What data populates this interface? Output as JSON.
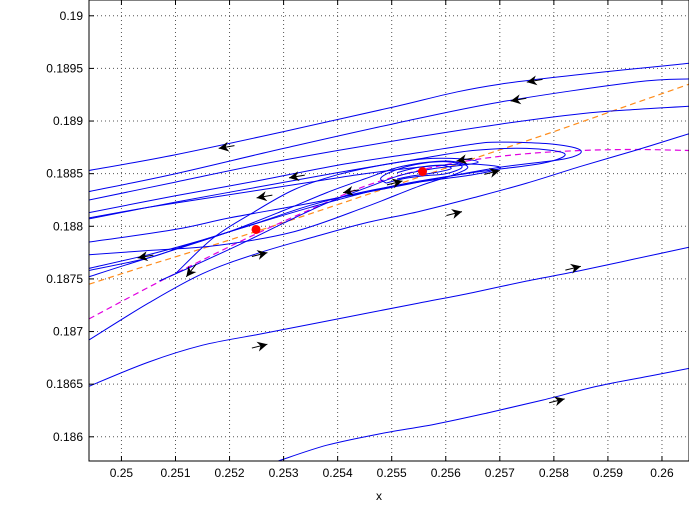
{
  "chart_data": {
    "type": "line",
    "title": "",
    "xlabel": "x",
    "ylabel": "",
    "xlim": [
      0.2494,
      0.2605
    ],
    "ylim": [
      0.18577,
      0.19015
    ],
    "grid": true,
    "xticks": [
      0.25,
      0.251,
      0.252,
      0.253,
      0.254,
      0.255,
      0.256,
      0.257,
      0.258,
      0.259,
      0.26
    ],
    "xtick_labels": [
      "0.25",
      "0.251",
      "0.252",
      "0.253",
      "0.254",
      "0.255",
      "0.256",
      "0.257",
      "0.258",
      "0.259",
      "0.26"
    ],
    "yticks": [
      0.186,
      0.1865,
      0.187,
      0.1875,
      0.188,
      0.1885,
      0.189,
      0.1895,
      0.19
    ],
    "ytick_labels": [
      "0.186",
      "0.1865",
      "0.187",
      "0.1875",
      "0.188",
      "0.1885",
      "0.189",
      "0.1895",
      "0.19"
    ],
    "colors": {
      "trajectory": "#0000ee",
      "arrow": "#000000",
      "nullcline_orange": "#ff8c1a",
      "nullcline_magenta": "#e000e0",
      "equilibrium": "#ff0000",
      "grid": "#555555"
    },
    "trajectories": [
      {
        "x": [
          0.2494,
          0.251,
          0.253,
          0.255,
          0.257,
          0.2605
        ],
        "y": [
          0.18853,
          0.18868,
          0.1889,
          0.18913,
          0.18935,
          0.18955
        ]
      },
      {
        "x": [
          0.2494,
          0.251,
          0.253,
          0.255,
          0.257,
          0.2595,
          0.2605
        ],
        "y": [
          0.18833,
          0.1885,
          0.18874,
          0.18897,
          0.18918,
          0.18937,
          0.1894
        ]
      },
      {
        "x": [
          0.2494,
          0.251,
          0.2525,
          0.254,
          0.2555,
          0.257,
          0.2585,
          0.2595,
          0.2605
        ],
        "y": [
          0.18825,
          0.18842,
          0.18858,
          0.18872,
          0.18885,
          0.18897,
          0.18907,
          0.18911,
          0.18914
        ]
      },
      {
        "x": [
          0.2494,
          0.251,
          0.2525,
          0.254,
          0.2555,
          0.2565,
          0.257,
          0.258,
          0.2585,
          0.2582,
          0.257,
          0.2555,
          0.2535,
          0.252,
          0.251,
          0.2494
        ],
        "y": [
          0.18813,
          0.18829,
          0.18843,
          0.18858,
          0.1887,
          0.18878,
          0.1888,
          0.18878,
          0.18872,
          0.18864,
          0.18856,
          0.18842,
          0.18822,
          0.18808,
          0.18797,
          0.18785
        ]
      },
      {
        "x": [
          0.2494,
          0.251,
          0.2525,
          0.254,
          0.2555,
          0.2565,
          0.2575,
          0.2582,
          0.2578,
          0.2565,
          0.255,
          0.2535,
          0.2522,
          0.2512,
          0.2505,
          0.2494
        ],
        "y": [
          0.18807,
          0.18823,
          0.18837,
          0.18851,
          0.18864,
          0.18872,
          0.18874,
          0.18869,
          0.1886,
          0.18851,
          0.18838,
          0.18818,
          0.18798,
          0.18782,
          0.1877,
          0.18758
        ]
      },
      {
        "x": [
          0.2494,
          0.2505,
          0.2515,
          0.2525,
          0.2535,
          0.2545,
          0.2555,
          0.2562,
          0.2568,
          0.257,
          0.2565,
          0.2555,
          0.2545,
          0.2535,
          0.2525,
          0.2515,
          0.2505,
          0.2494
        ],
        "y": [
          0.18808,
          0.18818,
          0.18826,
          0.18834,
          0.18842,
          0.1885,
          0.18856,
          0.18859,
          0.18858,
          0.18855,
          0.18849,
          0.18842,
          0.18833,
          0.1882,
          0.18803,
          0.18787,
          0.18773,
          0.1876
        ]
      },
      {
        "x": [
          0.2494,
          0.2505,
          0.2518,
          0.2532,
          0.2545,
          0.2555,
          0.2562,
          0.2564,
          0.256,
          0.2552,
          0.2545,
          0.2538,
          0.253,
          0.252,
          0.251,
          0.25,
          0.2494
        ],
        "y": [
          0.18773,
          0.18777,
          0.18782,
          0.18795,
          0.18818,
          0.18838,
          0.1885,
          0.18857,
          0.18862,
          0.18857,
          0.18845,
          0.18832,
          0.18815,
          0.18795,
          0.18778,
          0.18762,
          0.18752
        ]
      },
      {
        "x": [
          0.2507,
          0.2514,
          0.2522,
          0.253,
          0.2538,
          0.2546,
          0.2552,
          0.2558,
          0.2563,
          0.2566,
          0.2563,
          0.2556,
          0.2548,
          0.254,
          0.2532,
          0.2524,
          0.2517,
          0.251
        ],
        "y": [
          0.18748,
          0.18764,
          0.18783,
          0.18803,
          0.18822,
          0.18838,
          0.18849,
          0.18855,
          0.18858,
          0.18861,
          0.18864,
          0.18864,
          0.18858,
          0.18849,
          0.18835,
          0.18812,
          0.18789,
          0.18755
        ]
      },
      {
        "x": [
          0.2549,
          0.2552,
          0.2556,
          0.256,
          0.2563,
          0.2561,
          0.2556,
          0.2551,
          0.2548,
          0.2549
        ],
        "y": [
          0.18841,
          0.18845,
          0.18848,
          0.1885,
          0.18856,
          0.18861,
          0.1886,
          0.18854,
          0.18846,
          0.18841
        ]
      },
      {
        "x": [
          0.2551,
          0.2554,
          0.2558,
          0.2561,
          0.2559,
          0.2555,
          0.2551
        ],
        "y": [
          0.18845,
          0.18848,
          0.18851,
          0.18855,
          0.18858,
          0.18856,
          0.18851
        ]
      },
      {
        "x": [
          0.2494,
          0.2505,
          0.2515,
          0.2525,
          0.2535,
          0.2545,
          0.2555,
          0.2565,
          0.2575,
          0.2585,
          0.2595,
          0.2605
        ],
        "y": [
          0.18692,
          0.18727,
          0.18755,
          0.18774,
          0.18789,
          0.18803,
          0.18814,
          0.18827,
          0.18841,
          0.18857,
          0.18872,
          0.18888
        ]
      },
      {
        "x": [
          0.2494,
          0.2505,
          0.2515,
          0.2525,
          0.2535,
          0.2545,
          0.2555,
          0.2565,
          0.2575,
          0.2585,
          0.2595,
          0.2605
        ],
        "y": [
          0.18648,
          0.18671,
          0.18687,
          0.18697,
          0.18707,
          0.18717,
          0.18727,
          0.18737,
          0.18748,
          0.18758,
          0.18769,
          0.1878
        ]
      },
      {
        "x": [
          0.2529,
          0.2538,
          0.2548,
          0.2558,
          0.2568,
          0.2578,
          0.2588,
          0.2598,
          0.2605
        ],
        "y": [
          0.18577,
          0.18592,
          0.18603,
          0.18612,
          0.18623,
          0.18635,
          0.18648,
          0.18658,
          0.18665
        ]
      }
    ],
    "arrows": [
      {
        "x": 0.2575,
        "y": 0.18937,
        "dir": "left"
      },
      {
        "x": 0.2572,
        "y": 0.18919,
        "dir": "left"
      },
      {
        "x": 0.2518,
        "y": 0.18874,
        "dir": "left"
      },
      {
        "x": 0.2531,
        "y": 0.18846,
        "dir": "left"
      },
      {
        "x": 0.2525,
        "y": 0.18827,
        "dir": "left"
      },
      {
        "x": 0.2541,
        "y": 0.18832,
        "dir": "left"
      },
      {
        "x": 0.2562,
        "y": 0.18862,
        "dir": "left"
      },
      {
        "x": 0.2552,
        "y": 0.18843,
        "dir": "right"
      },
      {
        "x": 0.257,
        "y": 0.18853,
        "dir": "right"
      },
      {
        "x": 0.2563,
        "y": 0.18814,
        "dir": "right"
      },
      {
        "x": 0.2527,
        "y": 0.18775,
        "dir": "right"
      },
      {
        "x": 0.2503,
        "y": 0.1877,
        "dir": "left"
      },
      {
        "x": 0.2512,
        "y": 0.18752,
        "dir": "downleft"
      },
      {
        "x": 0.2527,
        "y": 0.18688,
        "dir": "right"
      },
      {
        "x": 0.2585,
        "y": 0.18762,
        "dir": "right"
      },
      {
        "x": 0.2582,
        "y": 0.18636,
        "dir": "right"
      }
    ],
    "nullclines": [
      {
        "name": "orange",
        "dash": "6,4",
        "x": [
          0.2494,
          0.2505,
          0.252,
          0.2535,
          0.255,
          0.2565,
          0.258,
          0.2595,
          0.2605
        ],
        "y": [
          0.18745,
          0.18763,
          0.18787,
          0.18812,
          0.18838,
          0.18864,
          0.1889,
          0.18917,
          0.18935
        ]
      },
      {
        "name": "magenta",
        "dash": "6,4",
        "x": [
          0.2494,
          0.2505,
          0.2515,
          0.2525,
          0.2535,
          0.2545,
          0.2555,
          0.2565,
          0.2575,
          0.2585,
          0.2595,
          0.2605
        ],
        "y": [
          0.18712,
          0.18742,
          0.18768,
          0.18793,
          0.18816,
          0.18838,
          0.18853,
          0.18863,
          0.18869,
          0.18872,
          0.18873,
          0.18872
        ]
      }
    ],
    "equilibria": [
      {
        "x": 0.25249,
        "y": 0.18797
      },
      {
        "x": 0.25557,
        "y": 0.18852
      }
    ]
  }
}
